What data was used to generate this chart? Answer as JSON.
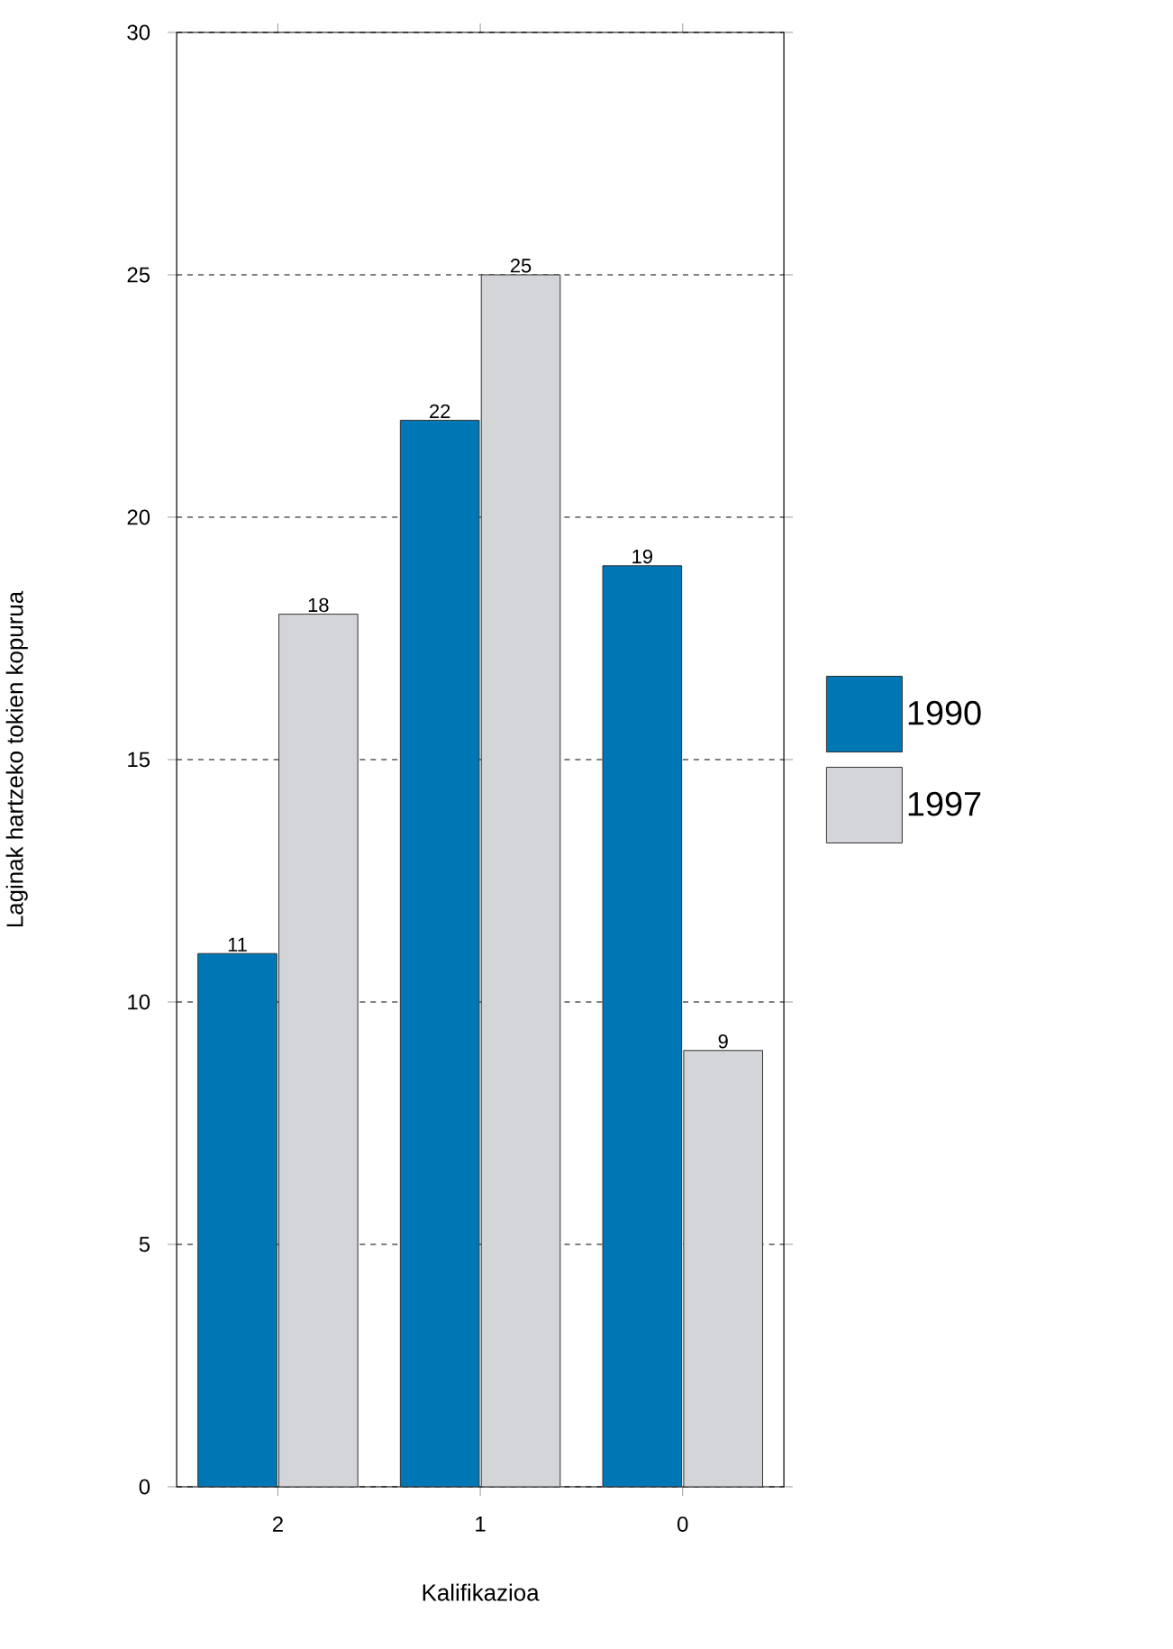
{
  "chart_data": {
    "type": "bar",
    "xlabel": "Kalifikazioa",
    "ylabel": "Laginak hartzeko tokien kopurua",
    "categories": [
      "2",
      "1",
      "0"
    ],
    "series": [
      {
        "name": "1990",
        "color": "#0077b5",
        "values": [
          11,
          22,
          19
        ]
      },
      {
        "name": "1997",
        "color": "#d3d5d8",
        "values": [
          18,
          25,
          9
        ]
      }
    ],
    "ylim": [
      0,
      30
    ],
    "yticks": [
      0,
      5,
      10,
      15,
      20,
      25,
      30
    ],
    "grid": "y",
    "legend": "right",
    "data_labels": true
  }
}
